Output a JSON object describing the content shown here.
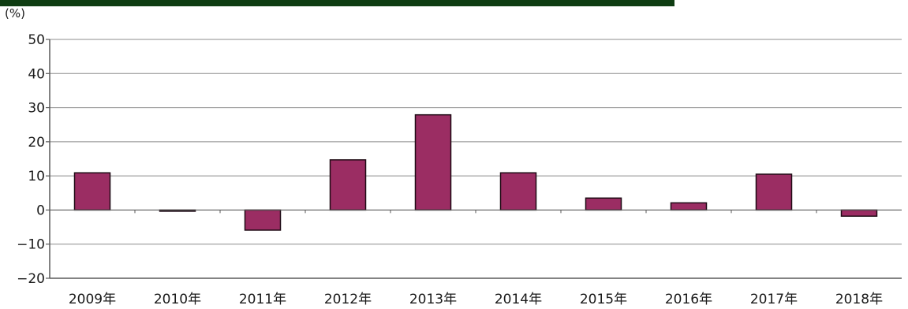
{
  "chart_data": {
    "type": "bar",
    "ylabel": "(%)",
    "categories": [
      "2009年",
      "2010年",
      "2011年",
      "2012年",
      "2013年",
      "2014年",
      "2015年",
      "2016年",
      "2017年",
      "2018年"
    ],
    "values": [
      10.9,
      -0.2,
      -5.9,
      14.7,
      27.9,
      10.9,
      3.5,
      2.1,
      10.5,
      -1.8
    ],
    "ylim": [
      -20,
      50
    ],
    "yticks": [
      50,
      40,
      30,
      20,
      10,
      0,
      -10,
      -20
    ],
    "ytick_labels": [
      "50",
      "40",
      "30",
      "20",
      "10",
      "0",
      "−10",
      "−20"
    ],
    "grid": true,
    "legend": false
  },
  "colors": {
    "bar_fill": "#9b2d63",
    "bar_stroke": "#1e0a14",
    "top_band": "#0f3d12",
    "grid": "#8c8c8c",
    "axis": "#5a5a5a"
  }
}
